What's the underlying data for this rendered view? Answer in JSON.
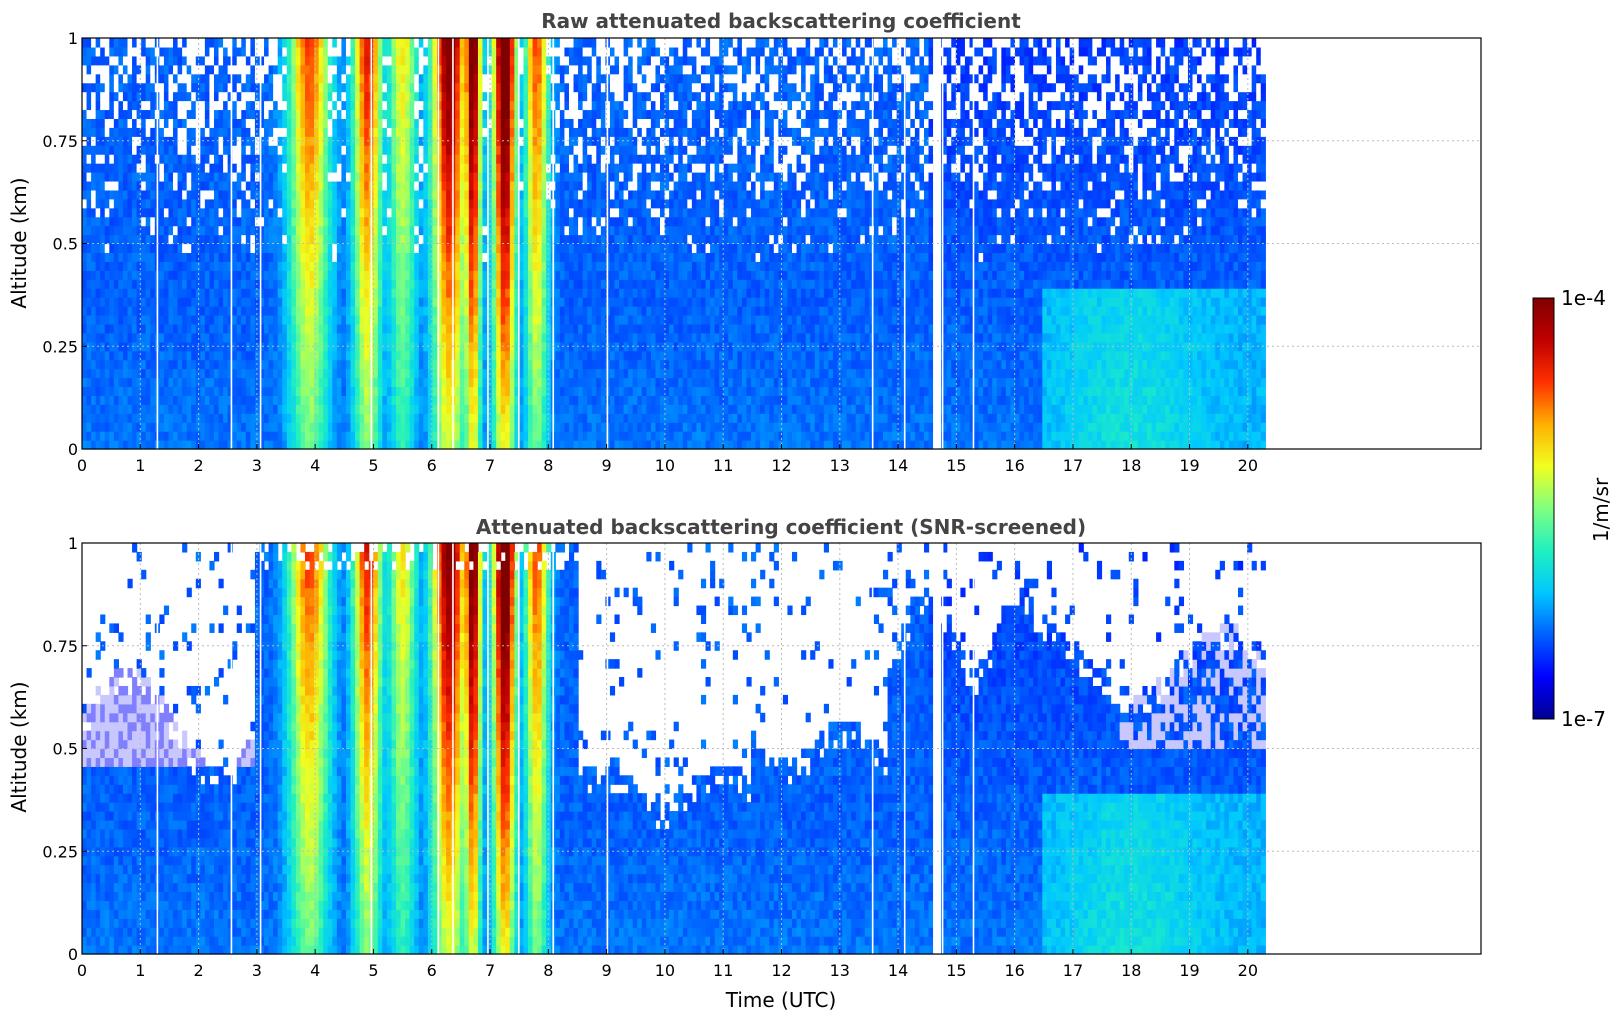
{
  "colors": {
    "colormap": [
      "#000090",
      "#0000ff",
      "#0060ff",
      "#00c8ff",
      "#20f0c0",
      "#80ff80",
      "#f0ff20",
      "#ffb000",
      "#ff3000",
      "#c00000",
      "#800000"
    ],
    "low": "#d8d8ff",
    "frame": "#000000",
    "grid": "#bbbbbb"
  },
  "chart_data": [
    {
      "type": "heatmap",
      "title": "Raw attenuated backscattering coefficient",
      "xlabel": "",
      "ylabel": "Altitude (km)",
      "xlim": [
        0,
        24
      ],
      "ylim": [
        0,
        1
      ],
      "xticks": [
        "0",
        "1",
        "2",
        "3",
        "4",
        "5",
        "6",
        "7",
        "8",
        "9",
        "10",
        "11",
        "12",
        "13",
        "14",
        "15",
        "16",
        "17",
        "18",
        "19",
        "20"
      ],
      "yticks": [
        "0",
        "0.25",
        "0.5",
        "0.75",
        "1"
      ],
      "data_end_hour": 20.3,
      "grid": true,
      "screened": false
    },
    {
      "type": "heatmap",
      "title": "Attenuated backscattering coefficient (SNR-screened)",
      "xlabel": "Time (UTC)",
      "ylabel": "Altitude (km)",
      "xlim": [
        0,
        24
      ],
      "ylim": [
        0,
        1
      ],
      "xticks": [
        "0",
        "1",
        "2",
        "3",
        "4",
        "5",
        "6",
        "7",
        "8",
        "9",
        "10",
        "11",
        "12",
        "13",
        "14",
        "15",
        "16",
        "17",
        "18",
        "19",
        "20"
      ],
      "yticks": [
        "0",
        "0.25",
        "0.5",
        "0.75",
        "1"
      ],
      "data_end_hour": 20.3,
      "grid": true,
      "screened": true
    }
  ],
  "colorbar": {
    "max_label": "1e-4",
    "min_label": "1e-7",
    "label": "1/m/sr",
    "scale": "log"
  }
}
